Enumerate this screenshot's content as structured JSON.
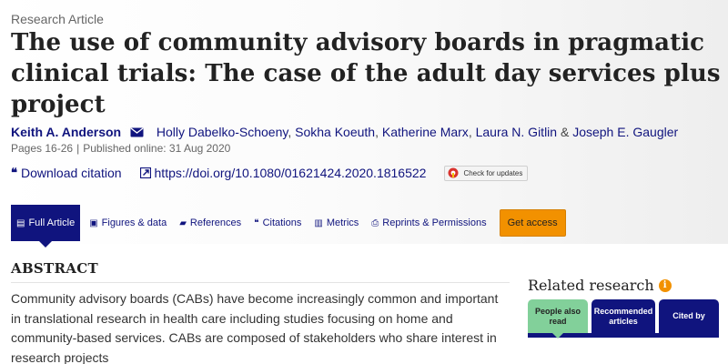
{
  "article": {
    "type": "Research Article",
    "title": "The use of community advisory boards in pragmatic clinical trials: The case of the adult day services plus project",
    "authors": [
      {
        "name": "Keith A. Anderson",
        "sep": ""
      },
      {
        "name": "Holly Dabelko-Schoeny",
        "sep": ","
      },
      {
        "name": "Sokha Koeuth",
        "sep": ","
      },
      {
        "name": "Katherine Marx",
        "sep": ","
      },
      {
        "name": "Laura N. Gitlin",
        "sep": " &"
      },
      {
        "name": "Joseph E. Gaugler",
        "sep": ""
      }
    ],
    "pages": "Pages 16-26",
    "meta_separator": "|",
    "published": "Published online: 31 Aug 2020"
  },
  "actions": {
    "download_label": "Download citation",
    "doi_link": "https://doi.org/10.1080/01621424.2020.1816522",
    "check_updates_label": "Check for updates"
  },
  "tabs": [
    {
      "label": "Full Article",
      "icon": "document-icon",
      "glyph": "▤"
    },
    {
      "label": "Figures & data",
      "icon": "image-icon",
      "glyph": "▣"
    },
    {
      "label": "References",
      "icon": "book-icon",
      "glyph": "▰"
    },
    {
      "label": "Citations",
      "icon": "quote-icon",
      "glyph": "❝"
    },
    {
      "label": "Metrics",
      "icon": "bar-chart-icon",
      "glyph": "▥"
    },
    {
      "label": "Reprints & Permissions",
      "icon": "printer-icon",
      "glyph": "⎙"
    }
  ],
  "get_access_label": "Get access",
  "abstract": {
    "heading": "ABSTRACT",
    "text": "Community advisory boards (CABs) have become increasingly common and important in translational research in health care including studies focusing on home and community-based services. CABs are composed of stakeholders who share interest in research projects"
  },
  "related": {
    "title": "Related research",
    "info_glyph": "i",
    "tabs": [
      {
        "label": "People also read"
      },
      {
        "label": "Recommended articles"
      },
      {
        "label": "Cited by"
      }
    ]
  },
  "colors": {
    "brand_navy": "#10147e",
    "accent_orange": "#f29100",
    "related_active_green": "#82d09a"
  }
}
